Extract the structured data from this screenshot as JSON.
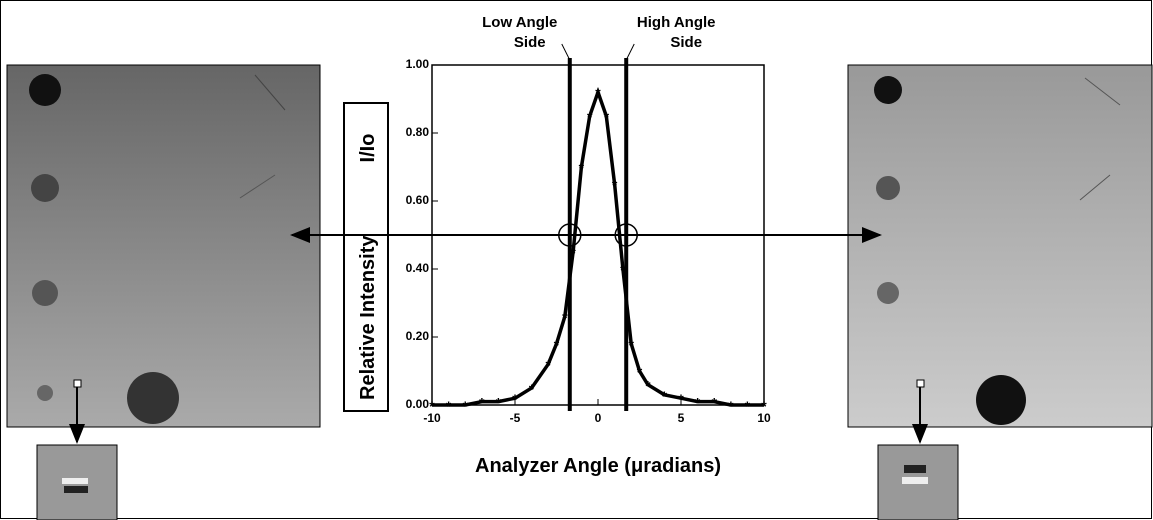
{
  "chart_data": {
    "type": "line",
    "x": [
      -10,
      -9,
      -8,
      -7,
      -6,
      -5,
      -4,
      -3,
      -2.5,
      -2,
      -1.5,
      -1,
      -0.5,
      0,
      0.5,
      1,
      1.5,
      2,
      2.5,
      3,
      4,
      5,
      6,
      7,
      8,
      9,
      10
    ],
    "values": [
      0.0,
      0.0,
      0.0,
      0.01,
      0.01,
      0.02,
      0.05,
      0.12,
      0.18,
      0.26,
      0.45,
      0.7,
      0.85,
      0.92,
      0.85,
      0.65,
      0.4,
      0.18,
      0.1,
      0.06,
      0.03,
      0.02,
      0.01,
      0.01,
      0.0,
      0.0,
      0.0
    ],
    "color": "#000000",
    "xlim": [
      -10,
      10
    ],
    "xticks": [
      -10,
      -5,
      0,
      5,
      10
    ],
    "ylim": [
      0,
      1
    ],
    "yticks": [
      {
        "value": 0,
        "label": "0.00"
      },
      {
        "value": 0.2,
        "label": "0.20"
      },
      {
        "value": 0.4,
        "label": "0.40"
      },
      {
        "value": 0.6,
        "label": "0.60"
      },
      {
        "value": 0.8,
        "label": "0.80"
      },
      {
        "value": 1,
        "label": "1.00"
      }
    ],
    "xlabel": "Analyzer Angle (μradians)",
    "ylabel": "Relative Intensity",
    "ylabel_unit": "I/Io",
    "reference_lines": [
      -1.7,
      1.7
    ],
    "reference_labels": [
      [
        "Low Angle",
        "Side"
      ],
      [
        "High Angle",
        "Side"
      ]
    ],
    "working_level": 0.5
  }
}
